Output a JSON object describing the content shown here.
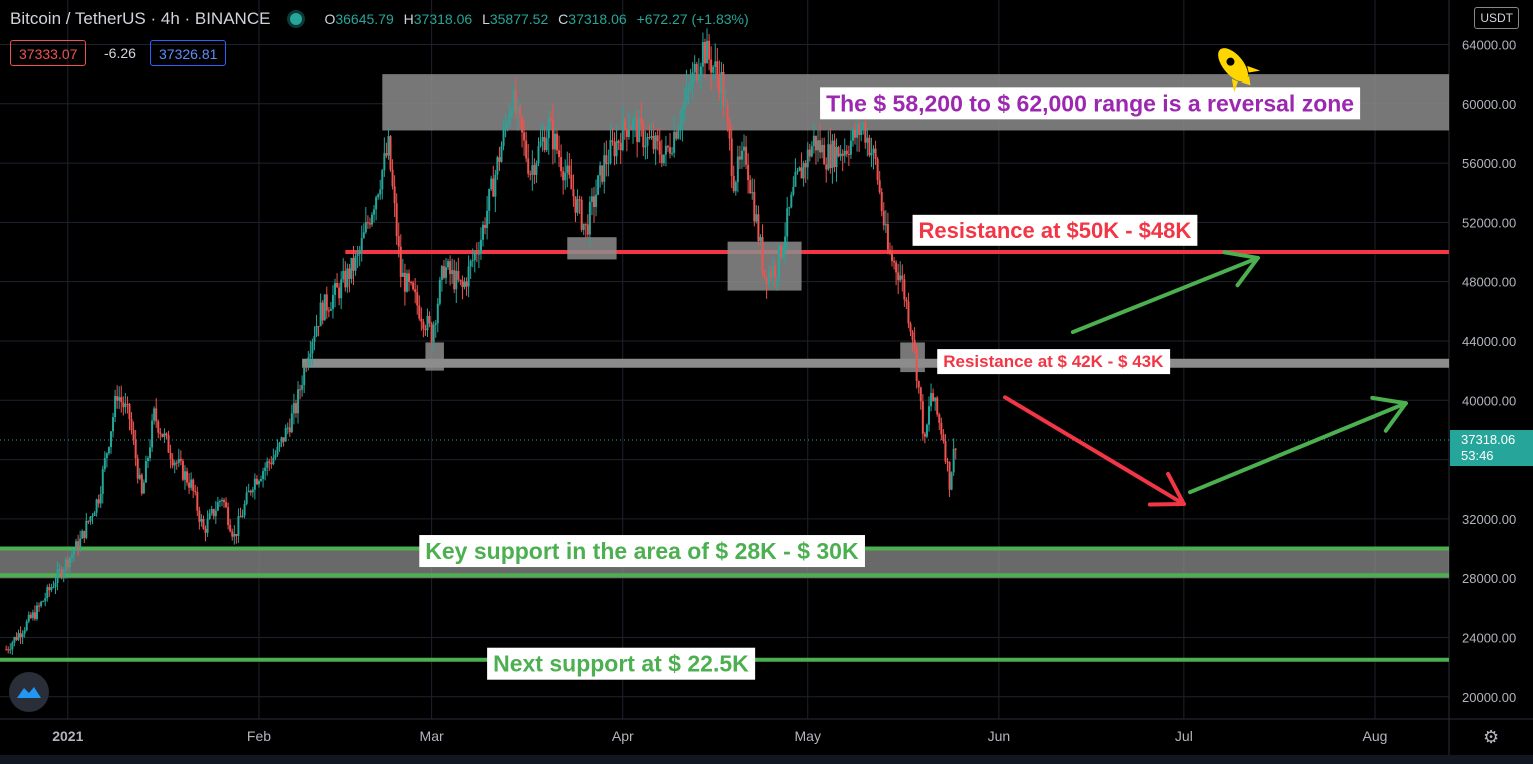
{
  "header": {
    "symbol": "Bitcoin / TetherUS · 4h · BINANCE",
    "o_label": "O",
    "o": "36645.79",
    "h_label": "H",
    "h": "37318.06",
    "l_label": "L",
    "l": "35877.52",
    "c_label": "C",
    "c": "37318.06",
    "change": "+672.27 (+1.83%)"
  },
  "trade": {
    "sell": "37333.07",
    "spread": "-6.26",
    "buy": "37326.81"
  },
  "currency": "USDT",
  "icons": [
    "status-dot-icon",
    "rocket-icon",
    "tradingview-logo-icon",
    "gear-icon"
  ],
  "colors": {
    "up": "#26a69a",
    "down": "#ef5350",
    "zone": "#8c8c8c",
    "support": "#4caf50",
    "resistance": "#f23645",
    "title": "#9c27b0"
  },
  "chart_data": {
    "type": "candlestick",
    "ylim": [
      18500,
      67000
    ],
    "y_ticks": [
      20000,
      24000,
      28000,
      32000,
      36000,
      40000,
      44000,
      48000,
      52000,
      56000,
      60000,
      64000
    ],
    "y_tick_labels": [
      "20000.00",
      "24000.00",
      "28000.00",
      "32000.00",
      "",
      "40000.00",
      "44000.00",
      "48000.00",
      "52000.00",
      "56000.00",
      "60000.00",
      "64000.00"
    ],
    "x_ticks": [
      "2020-12-31",
      "2021-01-31",
      "2021-02-28",
      "2021-03-31",
      "2021-04-30",
      "2021-05-31",
      "2021-06-30",
      "2021-07-31"
    ],
    "x_tick_labels": [
      "2021",
      "Feb",
      "Mar",
      "Apr",
      "May",
      "Jun",
      "Jul",
      "Aug"
    ],
    "last_price": {
      "value": 37318.06,
      "label": "37318.06",
      "countdown": "53:46"
    },
    "price_path": [
      [
        "2020-12-21",
        23200
      ],
      [
        "2020-12-26",
        25800
      ],
      [
        "2020-12-30",
        28600
      ],
      [
        "2021-01-02",
        30500
      ],
      [
        "2021-01-05",
        33500
      ],
      [
        "2021-01-08",
        40500
      ],
      [
        "2021-01-10",
        38800
      ],
      [
        "2021-01-12",
        33500
      ],
      [
        "2021-01-14",
        39000
      ],
      [
        "2021-01-17",
        36200
      ],
      [
        "2021-01-20",
        34300
      ],
      [
        "2021-01-22",
        31200
      ],
      [
        "2021-01-25",
        33500
      ],
      [
        "2021-01-27",
        30800
      ],
      [
        "2021-01-30",
        34500
      ],
      [
        "2021-02-03",
        36500
      ],
      [
        "2021-02-06",
        39500
      ],
      [
        "2021-02-08",
        43500
      ],
      [
        "2021-02-10",
        46000
      ],
      [
        "2021-02-13",
        47500
      ],
      [
        "2021-02-16",
        49500
      ],
      [
        "2021-02-19",
        54000
      ],
      [
        "2021-02-21",
        57000
      ],
      [
        "2021-02-23",
        48500
      ],
      [
        "2021-02-25",
        47000
      ],
      [
        "2021-02-28",
        44500
      ],
      [
        "2021-03-02",
        49000
      ],
      [
        "2021-03-05",
        47500
      ],
      [
        "2021-03-08",
        51000
      ],
      [
        "2021-03-11",
        56500
      ],
      [
        "2021-03-13",
        60500
      ],
      [
        "2021-03-16",
        55500
      ],
      [
        "2021-03-19",
        58500
      ],
      [
        "2021-03-22",
        55000
      ],
      [
        "2021-03-25",
        51500
      ],
      [
        "2021-03-28",
        56000
      ],
      [
        "2021-04-01",
        58800
      ],
      [
        "2021-04-04",
        57500
      ],
      [
        "2021-04-07",
        56500
      ],
      [
        "2021-04-10",
        60000
      ],
      [
        "2021-04-13",
        63800
      ],
      [
        "2021-04-16",
        61500
      ],
      [
        "2021-04-18",
        55000
      ],
      [
        "2021-04-20",
        56500
      ],
      [
        "2021-04-23",
        48500
      ],
      [
        "2021-04-25",
        49000
      ],
      [
        "2021-04-28",
        54500
      ],
      [
        "2021-05-01",
        57500
      ],
      [
        "2021-05-03",
        56500
      ],
      [
        "2021-05-06",
        57000
      ],
      [
        "2021-05-09",
        58500
      ],
      [
        "2021-05-11",
        56000
      ],
      [
        "2021-05-13",
        50000
      ],
      [
        "2021-05-15",
        48500
      ],
      [
        "2021-05-17",
        44500
      ],
      [
        "2021-05-19",
        37000
      ],
      [
        "2021-05-20",
        40500
      ],
      [
        "2021-05-22",
        37500
      ],
      [
        "2021-05-23",
        34500
      ],
      [
        "2021-05-24",
        37318
      ]
    ],
    "zones": [
      {
        "type": "reversal",
        "from": 58200,
        "to": 62000,
        "x_start": "2021-02-20"
      },
      {
        "type": "support",
        "from": 28000,
        "to": 30000,
        "x_start": "2020-12-20"
      }
    ],
    "levels": [
      {
        "type": "resistance",
        "value": 50000,
        "x_start": "2021-02-14",
        "color": "#f23645"
      },
      {
        "type": "resistance",
        "value": 42500,
        "x_start": "2021-02-07",
        "color": "#8c8c8c"
      },
      {
        "type": "support",
        "value": 30000,
        "x_start": "2020-12-20",
        "color": "#4caf50"
      },
      {
        "type": "support",
        "value": 28200,
        "x_start": "2020-12-20",
        "color": "#4caf50"
      },
      {
        "type": "support",
        "value": 22500,
        "x_start": "2020-12-20",
        "color": "#4caf50"
      }
    ],
    "small_boxes": [
      {
        "x1": "2021-02-27",
        "x2": "2021-03-02",
        "y1": 42000,
        "y2": 43900
      },
      {
        "x1": "2021-03-22",
        "x2": "2021-03-30",
        "y1": 49500,
        "y2": 51000
      },
      {
        "x1": "2021-04-17",
        "x2": "2021-04-29",
        "y1": 47400,
        "y2": 50700
      },
      {
        "x1": "2021-05-15",
        "x2": "2021-05-19",
        "y1": 41900,
        "y2": 43900
      }
    ],
    "annotations": [
      {
        "text": "The $ 58,200 to $ 62,000 range is a reversal zone",
        "color": "#9c27b0",
        "size": 23,
        "x": "2021-05-02",
        "y": 59900
      },
      {
        "text": "Resistance at $50K - $48K",
        "color": "#f23645",
        "size": 22,
        "x": "2021-05-17",
        "y": 51350
      },
      {
        "text": "Resistance at $ 42K - $ 43K",
        "color": "#f23645",
        "size": 17,
        "x": "2021-05-21",
        "y": 42540
      },
      {
        "text": "Key support in the area of $ 28K - $ 30K",
        "color": "#4caf50",
        "size": 23,
        "x": "2021-02-26",
        "y": 29700
      },
      {
        "text": "Next support at $ 22.5K",
        "color": "#4caf50",
        "size": 23,
        "x": "2021-03-09",
        "y": 22100
      }
    ],
    "arrows": [
      {
        "color": "#4caf50",
        "from": [
          "2021-06-12",
          44600
        ],
        "to": [
          "2021-07-12",
          49600
        ]
      },
      {
        "color": "#f23645",
        "from": [
          "2021-06-01",
          40200
        ],
        "to": [
          "2021-06-30",
          33000
        ]
      },
      {
        "color": "#4caf50",
        "from": [
          "2021-07-01",
          33800
        ],
        "to": [
          "2021-08-05",
          39800
        ]
      }
    ]
  }
}
